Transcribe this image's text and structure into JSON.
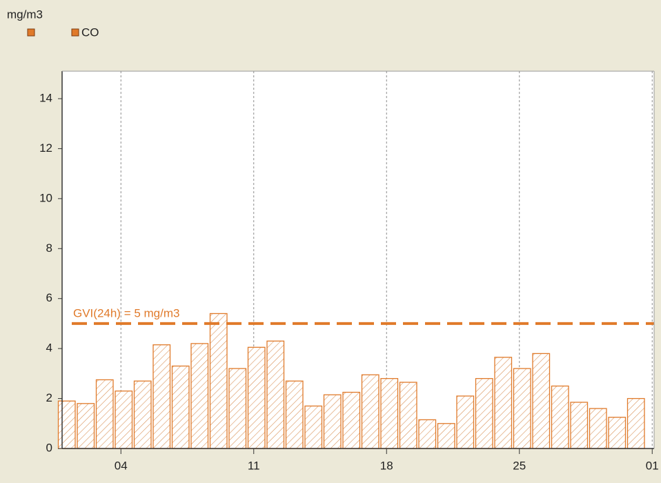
{
  "chart_data": {
    "type": "bar",
    "y_unit": "mg/m3",
    "x": [
      1,
      2,
      3,
      4,
      5,
      6,
      7,
      8,
      9,
      10,
      11,
      12,
      13,
      14,
      15,
      16,
      17,
      18,
      19,
      20,
      21,
      22,
      23,
      24,
      25,
      26,
      27,
      28,
      29,
      30,
      31
    ],
    "series": [
      {
        "name": "CO",
        "color": "#e07a2a",
        "values": [
          1.9,
          1.8,
          2.75,
          2.3,
          2.7,
          4.15,
          3.3,
          4.2,
          5.4,
          3.2,
          4.05,
          4.3,
          2.7,
          1.7,
          2.15,
          2.25,
          2.95,
          2.8,
          2.65,
          1.15,
          1.0,
          2.1,
          2.8,
          3.65,
          3.2,
          3.8,
          2.5,
          1.85,
          1.6,
          1.25,
          2.0
        ]
      }
    ],
    "xlim": [
      0.9,
      32.1
    ],
    "xticks": [
      {
        "value": 4,
        "label": "04"
      },
      11,
      18,
      25,
      {
        "value": 32,
        "label": "01"
      }
    ],
    "ylim": [
      0,
      15.1
    ],
    "yticks": [
      0,
      2,
      4,
      6,
      8,
      10,
      12,
      14
    ],
    "xgrid": true,
    "threshold": {
      "value": 5,
      "label": "GVI(24h) = 5 mg/m3",
      "color": "#e07a2a"
    }
  }
}
